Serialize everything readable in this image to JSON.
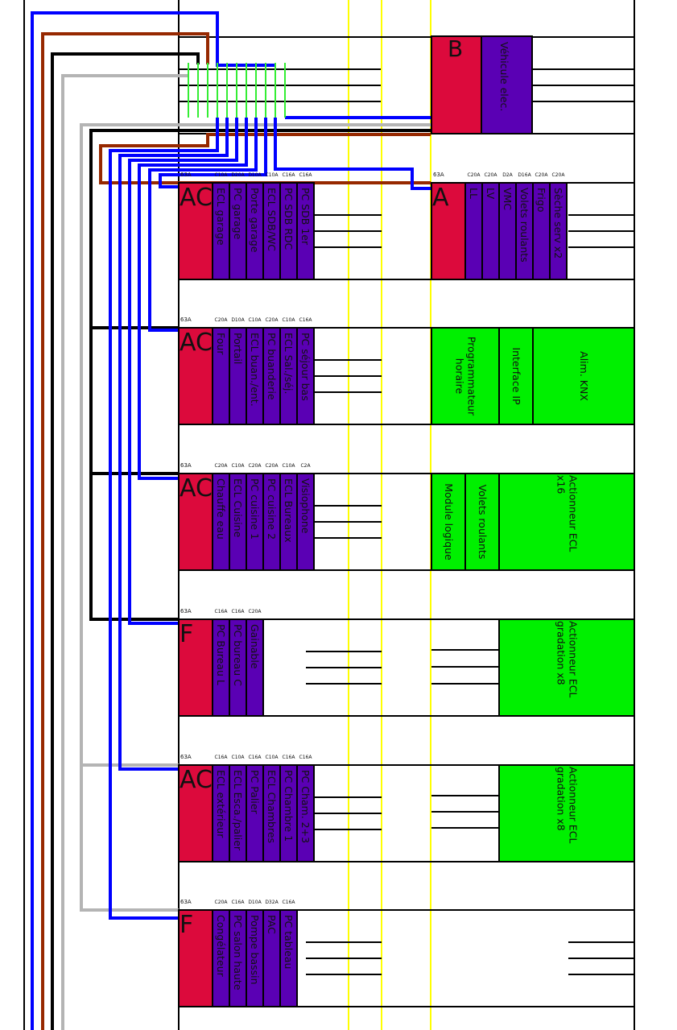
{
  "colors": {
    "main": "#dc0a3c",
    "breaker": "#5a00b4",
    "module": "#00f000",
    "rail": "#ffff00",
    "blue": "#0000ff",
    "brown": "#962800",
    "black": "#000000",
    "gray": "#b4b4b4",
    "bridge": "#33ee33"
  },
  "left_panels": [
    {
      "rating": "63A",
      "letter": "AC",
      "breakers": [
        {
          "rating": "C10A",
          "label": "ECL garage"
        },
        {
          "rating": "D20A",
          "label": "PC garage"
        },
        {
          "rating": "D10A",
          "label": "Porte garage"
        },
        {
          "rating": "C10A",
          "label": "ECL SDB/WC"
        },
        {
          "rating": "C16A",
          "label": "PC SDB RDC"
        },
        {
          "rating": "C16A",
          "label": "PC SDB 1er"
        }
      ]
    },
    {
      "rating": "63A",
      "letter": "AC",
      "breakers": [
        {
          "rating": "C20A",
          "label": "Four"
        },
        {
          "rating": "D10A",
          "label": "Portail"
        },
        {
          "rating": "C10A",
          "label": "ECL buan./ent."
        },
        {
          "rating": "C20A",
          "label": "PC buanderie"
        },
        {
          "rating": "C10A",
          "label": "ECL Sal./séj."
        },
        {
          "rating": "C16A",
          "label": "PC séjour bas"
        }
      ]
    },
    {
      "rating": "63A",
      "letter": "AC",
      "breakers": [
        {
          "rating": "C20A",
          "label": "Chauffe eau"
        },
        {
          "rating": "C10A",
          "label": "ECL Cuisine"
        },
        {
          "rating": "C20A",
          "label": "PC cuisine 1"
        },
        {
          "rating": "C20A",
          "label": "PC cuisine 2"
        },
        {
          "rating": "C10A",
          "label": "ECL Bureaux"
        },
        {
          "rating": "C2A",
          "label": "Visiophone"
        }
      ]
    },
    {
      "rating": "63A",
      "letter": "F",
      "breakers": [
        {
          "rating": "C16A",
          "label": "PC Bureau L"
        },
        {
          "rating": "C16A",
          "label": "PC bureau C"
        },
        {
          "rating": "C20A",
          "label": "Gainable"
        }
      ]
    },
    {
      "rating": "63A",
      "letter": "AC",
      "breakers": [
        {
          "rating": "C16A",
          "label": "ECL extérieur"
        },
        {
          "rating": "C10A",
          "label": "ECL Esca./palier"
        },
        {
          "rating": "C16A",
          "label": "PC Palier"
        },
        {
          "rating": "C10A",
          "label": "ECL Chambres"
        },
        {
          "rating": "C16A",
          "label": "PC Chambre 1"
        },
        {
          "rating": "C16A",
          "label": "PC Cham. 2+3"
        }
      ]
    },
    {
      "rating": "63A",
      "letter": "F",
      "breakers": [
        {
          "rating": "C20A",
          "label": "Congélateur"
        },
        {
          "rating": "C16A",
          "label": "PC salon haute"
        },
        {
          "rating": "D10A",
          "label": "Pompe bassin"
        },
        {
          "rating": "D32A",
          "label": "PAC"
        },
        {
          "rating": "C16A",
          "label": "PC tableau"
        }
      ]
    }
  ],
  "panel_a": {
    "rating": "63A",
    "letter": "A",
    "breakers": [
      {
        "rating": "C20A",
        "label": "LL"
      },
      {
        "rating": "C20A",
        "label": "LV"
      },
      {
        "rating": "D2A",
        "label": "VMC"
      },
      {
        "rating": "D16A",
        "label": "Volets roulants"
      },
      {
        "rating": "C20A",
        "label": "Frigo"
      },
      {
        "rating": "C20A",
        "label": "Sèche serv x2"
      }
    ]
  },
  "panel_b": {
    "letter": "B",
    "label": "Véhicule elec."
  },
  "modules": [
    [
      {
        "lines": [
          "Programmateur",
          "horaire"
        ]
      },
      {
        "lines": [
          "Interface IP"
        ]
      },
      {
        "lines": [
          "Alim. KNX"
        ]
      }
    ],
    [
      {
        "lines": [
          "Module logique"
        ]
      },
      {
        "lines": [
          "Volets roulants"
        ]
      },
      {
        "lines": [
          "Actionneur ECL",
          "x16"
        ]
      }
    ],
    [
      {
        "lines": [
          "Actionneur ECL",
          "gradation x8"
        ]
      }
    ],
    [
      {
        "lines": [
          "Actionneur ECL",
          "gradation x8"
        ]
      }
    ]
  ]
}
